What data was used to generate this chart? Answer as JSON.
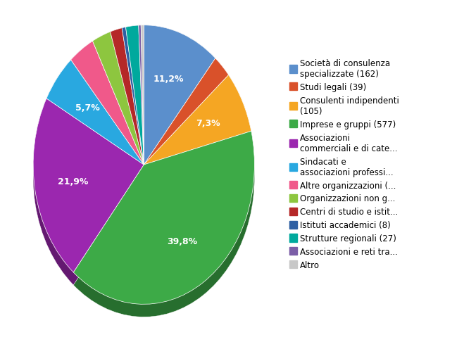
{
  "labels": [
    "Società di consulenza\nspecializzate (162)",
    "Studi legali (39)",
    "Consulenti indipendenti\n(105)",
    "Imprese e gruppi (577)",
    "Associazioni\ncommerciali e di cate...",
    "Sindacati e\nassociazioni professi...",
    "Altre organizzazioni (...",
    "Organizzazioni non g...",
    "Centri di studio e istit...",
    "Istituti accademici (8)",
    "Strutture regionali (27)",
    "Associazioni e reti tra...",
    "Altro"
  ],
  "values": [
    162,
    39,
    105,
    577,
    317,
    82,
    55,
    40,
    25,
    8,
    27,
    5,
    6
  ],
  "colors": [
    "#5B8FCC",
    "#D9512A",
    "#F5A623",
    "#3DAA47",
    "#9B27AF",
    "#29A8E0",
    "#F0598A",
    "#8DC63F",
    "#B52828",
    "#2E5FA3",
    "#00A99D",
    "#7B5EA7",
    "#C8C8C8"
  ],
  "figsize": [
    6.59,
    4.96
  ],
  "dpi": 100,
  "legend_fontsize": 8.5,
  "autopct_fontsize": 9,
  "background_color": "#FFFFFF",
  "startangle": 90,
  "pct_threshold": 4.5
}
